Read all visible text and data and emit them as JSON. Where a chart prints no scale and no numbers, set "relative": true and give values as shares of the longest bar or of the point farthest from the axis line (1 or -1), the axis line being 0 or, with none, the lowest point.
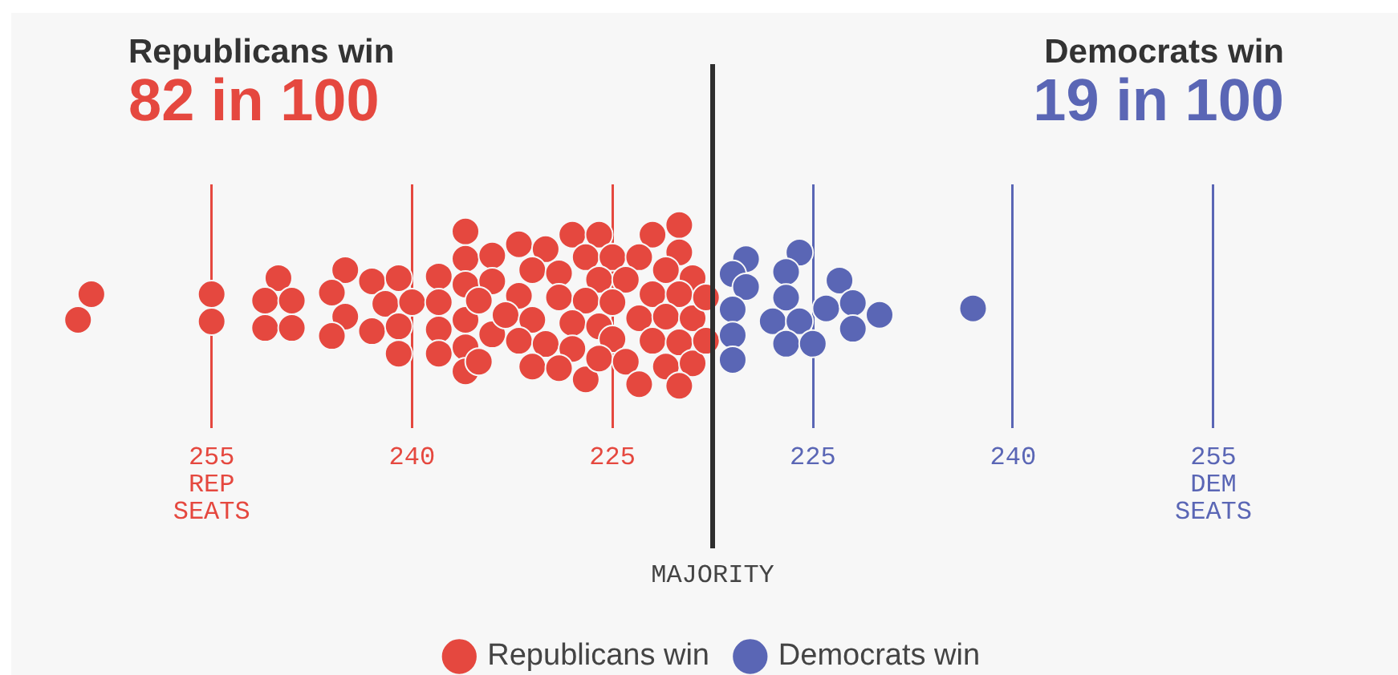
{
  "chart_data": [
    {
      "type": "scatter",
      "annotations": [
        "Republicans win",
        "82 in 100"
      ],
      "series": [
        {
          "name": "Republicans win",
          "color": "#e5483f",
          "x": [
            265,
            264,
            255,
            255,
            250,
            251,
            249,
            251,
            249,
            245,
            246,
            245,
            246,
            243,
            242,
            243,
            241,
            240,
            241,
            241,
            238,
            238,
            238,
            238,
            236,
            236,
            236,
            236,
            236,
            236,
            234,
            234,
            235,
            234,
            235,
            228,
            226,
            222,
            220,
            232,
            230,
            227,
            225,
            223,
            220,
            231,
            229,
            226,
            224,
            222,
            221,
            219,
            232,
            229,
            227,
            225,
            220,
            233,
            231,
            228,
            226,
            223,
            221,
            219,
            232,
            230,
            228,
            225,
            222,
            220,
            231,
            229,
            227,
            226,
            224,
            221,
            219,
            223,
            220,
            218,
            218
          ],
          "values": [
            0.41,
            0.57,
            0.57,
            0.4,
            0.67,
            0.53,
            0.53,
            0.36,
            0.36,
            0.72,
            0.58,
            0.43,
            0.31,
            0.65,
            0.51,
            0.34,
            0.67,
            0.52,
            0.37,
            0.2,
            0.68,
            0.52,
            0.35,
            0.2,
            0.96,
            0.79,
            0.63,
            0.41,
            0.24,
            0.09,
            0.81,
            0.65,
            0.53,
            0.32,
            0.15,
            0.94,
            0.94,
            0.94,
            1.0,
            0.88,
            0.85,
            0.8,
            0.8,
            0.8,
            0.83,
            0.72,
            0.7,
            0.66,
            0.66,
            0.57,
            0.72,
            0.67,
            0.56,
            0.55,
            0.53,
            0.52,
            0.57,
            0.44,
            0.41,
            0.39,
            0.37,
            0.42,
            0.43,
            0.42,
            0.28,
            0.26,
            0.23,
            0.29,
            0.28,
            0.27,
            0.12,
            0.11,
            0.04,
            0.17,
            0.15,
            0.12,
            0.14,
            0.01,
            0.0,
            0.55,
            0.28
          ]
        }
      ],
      "relative": true,
      "xlim": [
        270,
        217.5
      ],
      "xticks": [
        {
          "value": 255,
          "label": "255\nREP\nSEATS"
        },
        {
          "value": 240,
          "label": "240"
        },
        {
          "value": 225,
          "label": "225"
        }
      ],
      "ref_lines": [
        {
          "axis": "x",
          "value": 217.5,
          "label": "MAJORITY",
          "color": "#2e2e2e"
        }
      ],
      "grid": "x",
      "legend": "bottom right",
      "marker": "circle"
    },
    {
      "type": "scatter",
      "annotations": [
        "Democrats win",
        "19 in 100"
      ],
      "series": [
        {
          "name": "Democrats win",
          "color": "#5a66b5",
          "x": [
            220,
            224,
            219,
            220,
            223,
            227,
            219,
            223,
            226,
            228,
            230,
            222,
            224,
            228,
            219,
            223,
            225,
            219,
            237
          ],
          "values": [
            0.94,
            1.0,
            0.8,
            0.68,
            0.82,
            0.74,
            0.47,
            0.58,
            0.48,
            0.53,
            0.42,
            0.36,
            0.36,
            0.29,
            0.23,
            0.15,
            0.15,
            0.0,
            0.48
          ]
        }
      ],
      "relative": true,
      "xlim": [
        217.5,
        255
      ],
      "xticks": [
        {
          "value": 225,
          "label": "225"
        },
        {
          "value": 240,
          "label": "240"
        },
        {
          "value": 255,
          "label": "255\nDEM\nSEATS"
        }
      ],
      "ref_lines": [
        {
          "axis": "x",
          "value": 217.5,
          "color": "#2e2e2e"
        }
      ],
      "grid": "x",
      "legend": "bottom left",
      "marker": "circle"
    }
  ]
}
